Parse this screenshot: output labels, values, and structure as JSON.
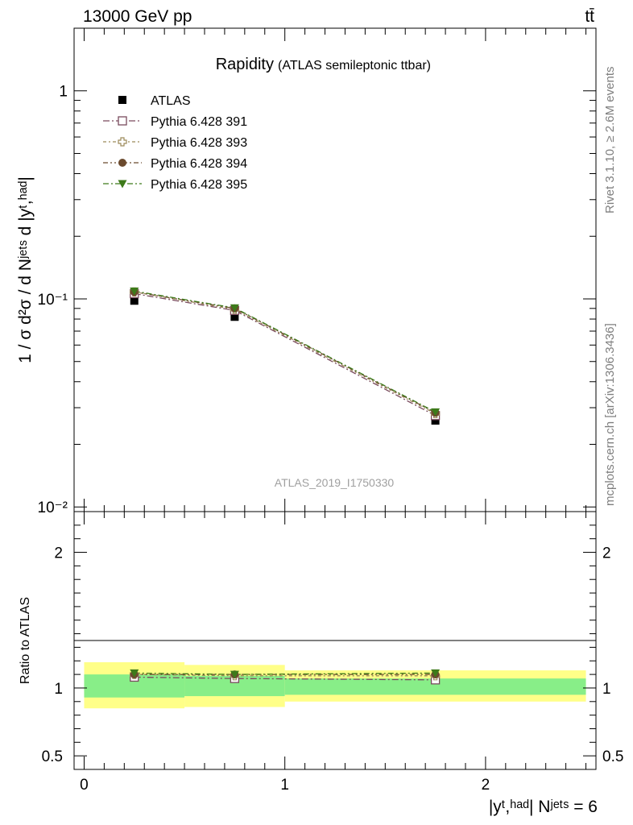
{
  "header": {
    "energy_label": "13000 GeV pp",
    "process_label": "tt̄"
  },
  "side_labels": {
    "rivet": "Rivet 3.1.10, ≥ 2.6M events",
    "mcplots": "mcplots.cern.ch [arXiv:1306.3436]"
  },
  "chart_data": [
    {
      "type": "scatter",
      "panel": "main",
      "title": "Rapidity",
      "subtitle": "(ATLAS semileptonic ttbar)",
      "watermark": "ATLAS_2019_I1750330",
      "ylabel": "1 / σ d²σ / d Nʲᵉᵗˢ d |yᵗ,ʰᵃᵈ|",
      "yscale": "log",
      "ylim": [
        0.0095,
        2.0
      ],
      "xlim": [
        -0.05,
        2.55
      ],
      "ytick_labels": [
        "1",
        "10⁻¹",
        "10⁻²"
      ],
      "ytick_values": [
        1,
        0.1,
        0.01
      ],
      "legend_placement": "top-left",
      "x": [
        0.25,
        0.75,
        1.75
      ],
      "series": [
        {
          "name": "ATLAS",
          "values": [
            0.098,
            0.082,
            0.026
          ],
          "color": "#000000",
          "marker": "square-filled"
        },
        {
          "name": "Pythia 6.428 391",
          "values": [
            0.106,
            0.088,
            0.0275
          ],
          "color": "#7a4b5e",
          "marker": "square-open"
        },
        {
          "name": "Pythia 6.428 393",
          "values": [
            0.108,
            0.089,
            0.0281
          ],
          "color": "#9c8a5a",
          "marker": "cross-open"
        },
        {
          "name": "Pythia 6.428 394",
          "values": [
            0.108,
            0.09,
            0.0284
          ],
          "color": "#6b4a2e",
          "marker": "circle-filled"
        },
        {
          "name": "Pythia 6.428 395",
          "values": [
            0.109,
            0.0905,
            0.0286
          ],
          "color": "#3d7a1a",
          "marker": "triangle-down-filled"
        }
      ]
    },
    {
      "type": "scatter",
      "panel": "ratio",
      "ylabel": "Ratio to ATLAS",
      "xlabel": "|yᵗ,ʰᵃᵈ| Nʲᵉᵗˢ = 6",
      "ylim": [
        0.4,
        2.3
      ],
      "xlim": [
        -0.05,
        2.55
      ],
      "xtick_labels": [
        "0",
        "1",
        "2"
      ],
      "xtick_values": [
        0,
        1,
        2
      ],
      "ytick_labels": [
        "2",
        "1",
        "0.5"
      ],
      "ytick_values": [
        2,
        1,
        0.5
      ],
      "bins": [
        [
          0,
          0.5
        ],
        [
          0.5,
          1.0
        ],
        [
          1.0,
          2.5
        ]
      ],
      "band_yellow": [
        [
          0.85,
          1.19
        ],
        [
          0.86,
          1.17
        ],
        [
          0.9,
          1.13
        ]
      ],
      "band_green": [
        [
          0.93,
          1.1
        ],
        [
          0.94,
          1.09
        ],
        [
          0.95,
          1.07
        ]
      ],
      "x": [
        0.25,
        0.75,
        1.75
      ],
      "series": [
        {
          "name": "Pythia 6.428 391",
          "values": [
            1.08,
            1.07,
            1.06
          ]
        },
        {
          "name": "Pythia 6.428 393",
          "values": [
            1.1,
            1.09,
            1.09
          ]
        },
        {
          "name": "Pythia 6.428 394",
          "values": [
            1.1,
            1.1,
            1.1
          ]
        },
        {
          "name": "Pythia 6.428 395",
          "values": [
            1.11,
            1.1,
            1.11
          ]
        }
      ]
    }
  ]
}
